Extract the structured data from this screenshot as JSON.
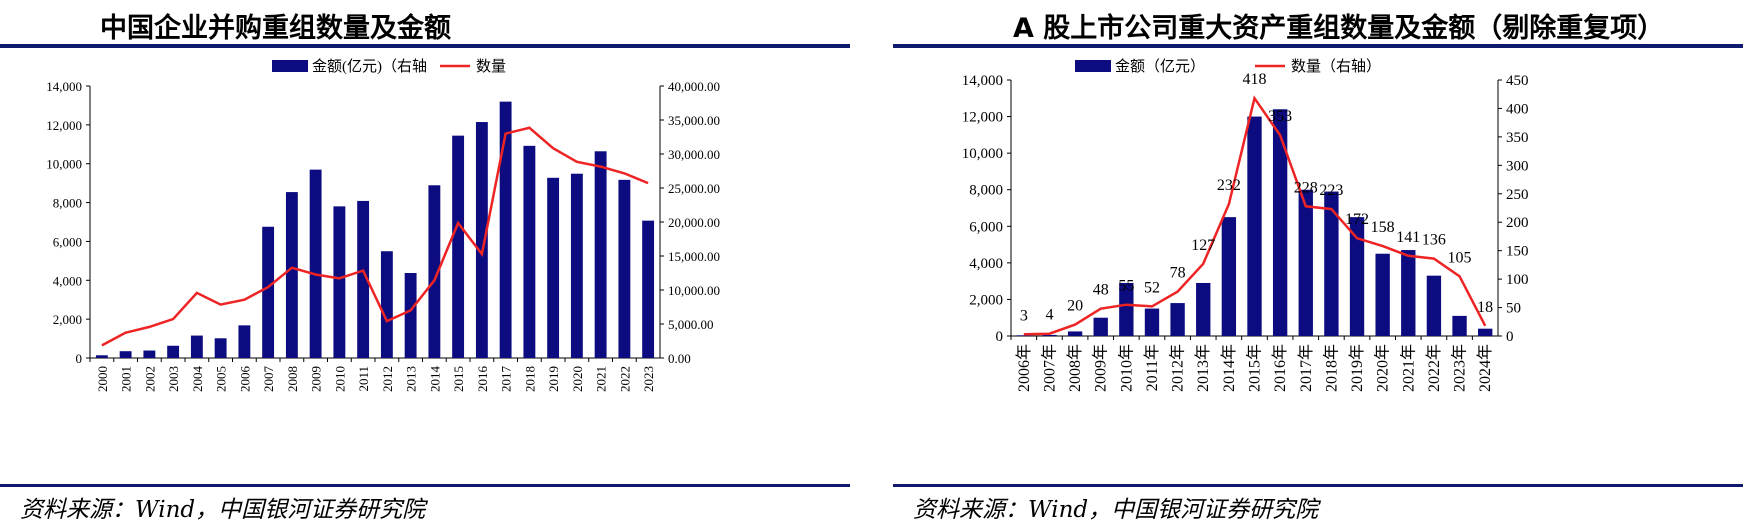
{
  "colors": {
    "bar": "#0c0c80",
    "line": "#ee2424",
    "rule": "#0f1a6e"
  },
  "left": {
    "title": "中国企业并购重组数量及金额",
    "source": "资料来源：Wind，中国银河证券研究院"
  },
  "right": {
    "title": "A 股上市公司重大资产重组数量及金额（剔除重复项）",
    "source": "资料来源：Wind，中国银河证券研究院"
  },
  "chart_data": [
    {
      "type": "bar+line",
      "categories": [
        "2000",
        "2001",
        "2002",
        "2003",
        "2004",
        "2005",
        "2006",
        "2007",
        "2008",
        "2009",
        "2010",
        "2011",
        "2012",
        "2013",
        "2014",
        "2015",
        "2016",
        "2017",
        "2018",
        "2019",
        "2020",
        "2021",
        "2022",
        "2023"
      ],
      "series": [
        {
          "name": "金额(亿元)（右轴",
          "type": "bar",
          "axis": "right",
          "values": [
            400,
            1000,
            1100,
            1800,
            3300,
            2900,
            4800,
            19300,
            24400,
            27700,
            22300,
            23100,
            15700,
            12500,
            25400,
            32700,
            34700,
            37700,
            31200,
            26500,
            27100,
            30400,
            26200,
            20200
          ]
        },
        {
          "name": "数量",
          "type": "line",
          "axis": "left",
          "values": [
            650,
            1300,
            1600,
            2000,
            3350,
            2750,
            3000,
            3650,
            4650,
            4300,
            4100,
            4500,
            1900,
            2450,
            4000,
            6950,
            5350,
            11550,
            11850,
            10800,
            10100,
            9850,
            9500,
            9000
          ]
        }
      ],
      "y_left": {
        "min": 0,
        "max": 14000,
        "ticks": [
          "0",
          "2,000",
          "4,000",
          "6,000",
          "8,000",
          "10,000",
          "12,000",
          "14,000"
        ]
      },
      "y_right": {
        "min": 0,
        "max": 40000,
        "ticks": [
          "0.00",
          "5,000.00",
          "10,000.00",
          "15,000.00",
          "20,000.00",
          "25,000.00",
          "30,000.00",
          "35,000.00",
          "40,000.00"
        ]
      },
      "legend": "top-center",
      "grid": false
    },
    {
      "type": "bar+line",
      "categories": [
        "2006年",
        "2007年",
        "2008年",
        "2009年",
        "2010年",
        "2011年",
        "2012年",
        "2013年",
        "2014年",
        "2015年",
        "2016年",
        "2017年",
        "2018年",
        "2019年",
        "2020年",
        "2021年",
        "2022年",
        "2023年",
        "2024年"
      ],
      "series": [
        {
          "name": "金额（亿元）",
          "type": "bar",
          "axis": "left",
          "values": [
            40,
            60,
            250,
            1000,
            2900,
            1500,
            1800,
            2900,
            6500,
            12000,
            12400,
            8000,
            7900,
            6500,
            4500,
            4700,
            3300,
            1100,
            400
          ]
        },
        {
          "name": "数量（右轴）",
          "type": "line",
          "axis": "right",
          "values": [
            3,
            4,
            20,
            48,
            55,
            52,
            78,
            127,
            232,
            418,
            353,
            228,
            223,
            172,
            158,
            141,
            136,
            105,
            18
          ],
          "labels": [
            "3",
            "4",
            "20",
            "48",
            "55",
            "52",
            "78",
            "127",
            "232",
            "418",
            "353",
            "228",
            "223",
            "172",
            "158",
            "141",
            "136",
            "105",
            "18"
          ]
        }
      ],
      "y_left": {
        "min": 0,
        "max": 14000,
        "ticks": [
          "0",
          "2,000",
          "4,000",
          "6,000",
          "8,000",
          "10,000",
          "12,000",
          "14,000"
        ]
      },
      "y_right": {
        "min": 0,
        "max": 450,
        "ticks": [
          "0",
          "50",
          "100",
          "150",
          "200",
          "250",
          "300",
          "350",
          "400",
          "450"
        ]
      },
      "legend": "top-center",
      "grid": false
    }
  ]
}
